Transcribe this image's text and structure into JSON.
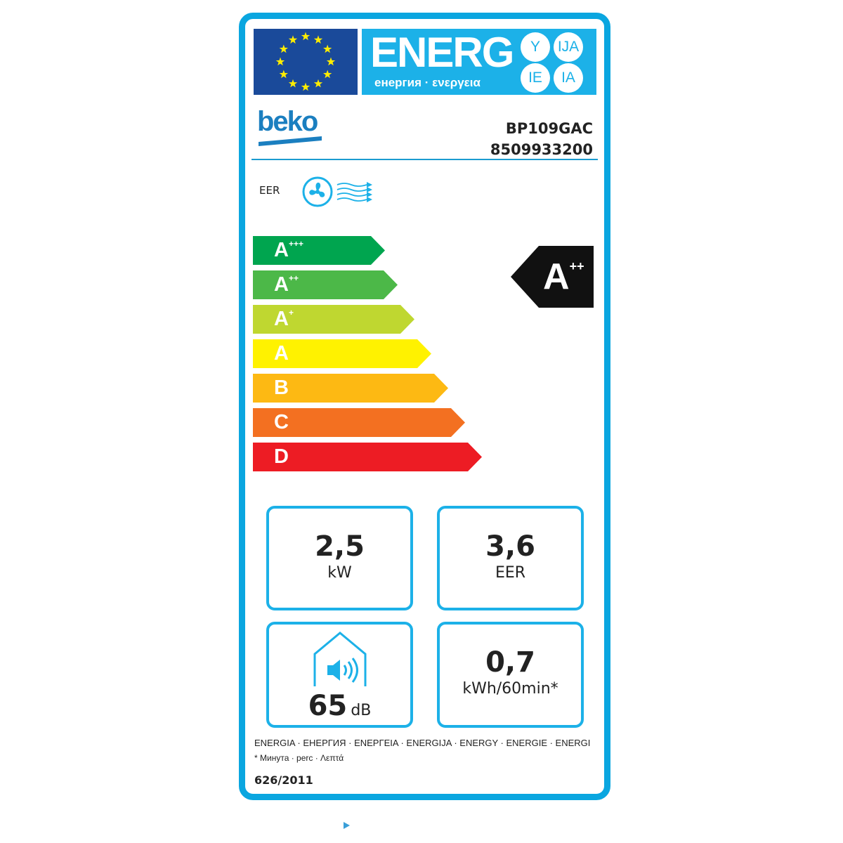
{
  "header": {
    "energy_word": "ENERG",
    "energy_sub": "енергия · ενεργεια",
    "suffixes": [
      "Y",
      "IJA",
      "IE",
      "IA"
    ]
  },
  "brand": "beko",
  "model": "BP109GAC",
  "code": "8509933200",
  "function_label": "EER",
  "scale": [
    {
      "class": "A",
      "sup": "+++",
      "color": "#00a54f"
    },
    {
      "class": "A",
      "sup": "++",
      "color": "#4cb848"
    },
    {
      "class": "A",
      "sup": "+",
      "color": "#bfd730"
    },
    {
      "class": "A",
      "sup": "",
      "color": "#fff200"
    },
    {
      "class": "B",
      "sup": "",
      "color": "#fdb913"
    },
    {
      "class": "C",
      "sup": "",
      "color": "#f37021"
    },
    {
      "class": "D",
      "sup": "",
      "color": "#ed1c24"
    }
  ],
  "rating": {
    "class": "A",
    "sup": "++"
  },
  "specs": {
    "power": {
      "value": "2,5",
      "unit": "kW"
    },
    "eer": {
      "value": "3,6",
      "unit": "EER"
    },
    "noise": {
      "value": "65",
      "unit": "dB"
    },
    "consumption": {
      "value": "0,7",
      "unit": "kWh/60min*"
    }
  },
  "footer": {
    "languages": "ENERGIA · ЕНЕРГИЯ · ΕΝΕΡΓΕΙΑ · ENERGIJA · ENERGY · ENERGIE · ENERGI",
    "minute_note": "* Минута · perc · Λεπτά",
    "regulation": "626/2011"
  },
  "colors": {
    "frame": "#0aa6e0",
    "eu_blue": "#1a4a9a",
    "brand": "#1b7fc0"
  }
}
